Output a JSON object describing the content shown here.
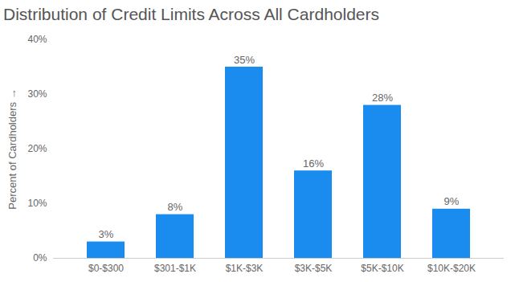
{
  "chart_data": {
    "type": "bar",
    "title": "Distribution of Credit Limits Across All Cardholders",
    "ylabel": "Percent of Cardholders",
    "categories": [
      "$0-$300",
      "$301-$1K",
      "$1K-$3K",
      "$3K-$5K",
      "$5K-$10K",
      "$10K-$20K"
    ],
    "values": [
      3,
      8,
      35,
      16,
      28,
      9
    ],
    "value_labels": [
      "3%",
      "8%",
      "35%",
      "16%",
      "28%",
      "9%"
    ],
    "color": "#1a8cf0",
    "ylim": [
      0,
      40
    ],
    "yticks": [
      {
        "value": 0,
        "label": "0%"
      },
      {
        "value": 10,
        "label": "10%"
      },
      {
        "value": 20,
        "label": "20%"
      },
      {
        "value": 30,
        "label": "30%"
      },
      {
        "value": 40,
        "label": "40%"
      }
    ],
    "grid": false,
    "data_labels": true
  }
}
